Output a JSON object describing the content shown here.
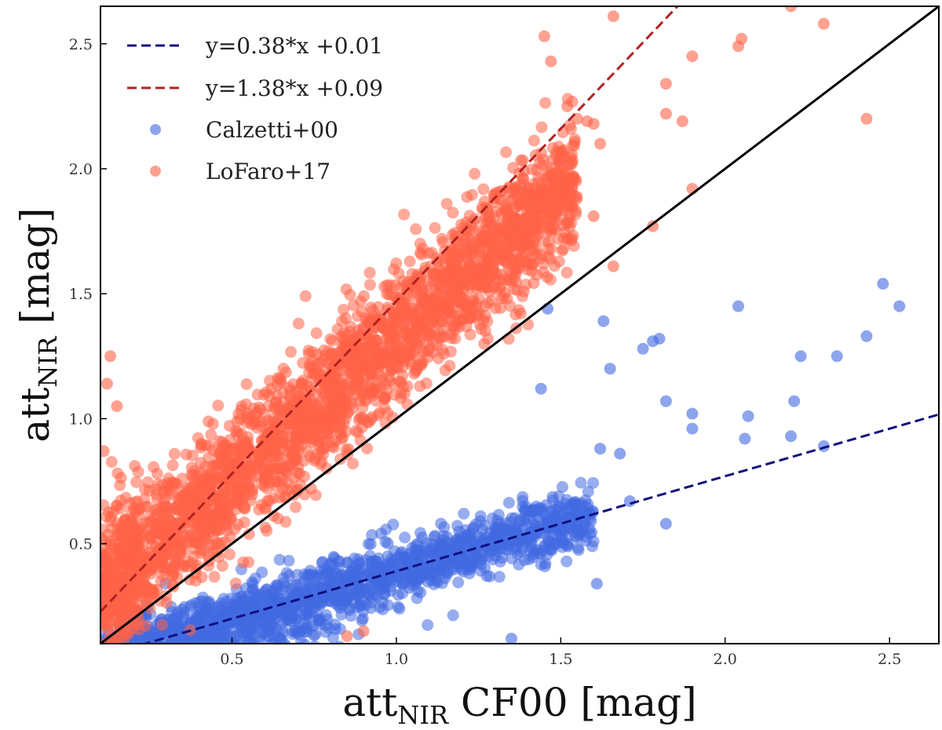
{
  "chart_data": {
    "type": "scatter",
    "title": "",
    "xlabel": {
      "main": "att",
      "sub": "NIR",
      "rest": " CF00 [mag]"
    },
    "ylabel": {
      "main": "att",
      "sub": "NIR",
      "rest": " [mag]"
    },
    "xlim": [
      0.1,
      2.65
    ],
    "ylim": [
      0.1,
      2.65
    ],
    "xticks": [
      0.5,
      1.0,
      1.5,
      2.0,
      2.5
    ],
    "yticks": [
      0.5,
      1.0,
      1.5,
      2.0,
      2.5
    ],
    "xtick_labels": [
      "0.5",
      "1.0",
      "1.5",
      "2.0",
      "2.5"
    ],
    "ytick_labels": [
      "0.5",
      "1.0",
      "1.5",
      "2.0",
      "2.5"
    ],
    "grid": false,
    "legend_position": "top-left",
    "lines": [
      {
        "name": "identity",
        "slope": 1.0,
        "intercept": 0.0,
        "color": "#000000",
        "style": "solid",
        "in_legend": false
      },
      {
        "name": "y=0.38*x +0.01",
        "slope": 0.38,
        "intercept": 0.01,
        "color": "#101080",
        "style": "dashed",
        "in_legend": true
      },
      {
        "name": "y=1.38*x +0.09",
        "slope": 1.38,
        "intercept": 0.09,
        "color": "#b22222",
        "style": "dashed",
        "in_legend": true
      }
    ],
    "series": [
      {
        "name": "Calzetti+00",
        "color": "#4169e1",
        "clouds": [
          {
            "x_range": [
              0.1,
              1.6
            ],
            "slope": 0.38,
            "intercept": 0.01,
            "spread": 0.06,
            "n": 1400
          },
          {
            "x_range": [
              0.15,
              0.9
            ],
            "slope": 0.35,
            "intercept": -0.02,
            "spread": 0.08,
            "n": 300
          }
        ],
        "outliers": [
          {
            "x": 1.63,
            "y": 1.39
          },
          {
            "x": 1.75,
            "y": 1.28
          },
          {
            "x": 1.78,
            "y": 1.31
          },
          {
            "x": 1.8,
            "y": 1.32
          },
          {
            "x": 1.65,
            "y": 1.2
          },
          {
            "x": 2.04,
            "y": 1.45
          },
          {
            "x": 2.48,
            "y": 1.54
          },
          {
            "x": 2.53,
            "y": 1.45
          },
          {
            "x": 2.43,
            "y": 1.33
          },
          {
            "x": 2.34,
            "y": 1.25
          },
          {
            "x": 2.23,
            "y": 1.25
          },
          {
            "x": 1.82,
            "y": 1.07
          },
          {
            "x": 1.9,
            "y": 1.02
          },
          {
            "x": 1.9,
            "y": 0.96
          },
          {
            "x": 2.07,
            "y": 1.01
          },
          {
            "x": 2.06,
            "y": 0.92
          },
          {
            "x": 2.2,
            "y": 0.93
          },
          {
            "x": 2.21,
            "y": 1.07
          },
          {
            "x": 2.3,
            "y": 0.89
          },
          {
            "x": 1.82,
            "y": 0.58
          },
          {
            "x": 1.61,
            "y": 0.34
          },
          {
            "x": 1.46,
            "y": 1.44
          },
          {
            "x": 1.44,
            "y": 1.12
          },
          {
            "x": 1.35,
            "y": 0.12
          },
          {
            "x": 1.68,
            "y": 0.86
          },
          {
            "x": 1.71,
            "y": 0.67
          },
          {
            "x": 1.62,
            "y": 0.88
          }
        ]
      },
      {
        "name": "LoFaro+17",
        "color": "#ff6347",
        "clouds": [
          {
            "x_range": [
              0.1,
              1.55
            ],
            "slope": 1.15,
            "intercept": 0.17,
            "spread": 0.13,
            "n": 2600
          },
          {
            "x_range": [
              0.1,
              0.22
            ],
            "slope": 1.3,
            "intercept": 0.12,
            "spread": 0.2,
            "n": 200
          }
        ],
        "outliers": [
          {
            "x": 1.45,
            "y": 2.53
          },
          {
            "x": 1.47,
            "y": 2.43
          },
          {
            "x": 1.52,
            "y": 2.25
          },
          {
            "x": 1.55,
            "y": 2.2
          },
          {
            "x": 1.58,
            "y": 2.19
          },
          {
            "x": 1.6,
            "y": 2.18
          },
          {
            "x": 1.62,
            "y": 2.1
          },
          {
            "x": 1.66,
            "y": 2.61
          },
          {
            "x": 1.82,
            "y": 2.34
          },
          {
            "x": 1.82,
            "y": 2.22
          },
          {
            "x": 1.87,
            "y": 2.19
          },
          {
            "x": 1.9,
            "y": 2.45
          },
          {
            "x": 2.05,
            "y": 2.52
          },
          {
            "x": 2.04,
            "y": 2.49
          },
          {
            "x": 2.2,
            "y": 2.65
          },
          {
            "x": 2.3,
            "y": 2.58
          },
          {
            "x": 2.43,
            "y": 2.2
          },
          {
            "x": 1.9,
            "y": 1.92
          },
          {
            "x": 1.78,
            "y": 1.77
          },
          {
            "x": 1.6,
            "y": 1.81
          },
          {
            "x": 1.66,
            "y": 1.61
          },
          {
            "x": 0.13,
            "y": 1.25
          },
          {
            "x": 0.12,
            "y": 1.14
          },
          {
            "x": 0.15,
            "y": 1.05
          },
          {
            "x": 0.11,
            "y": 0.87
          },
          {
            "x": 0.85,
            "y": 0.13
          },
          {
            "x": 0.9,
            "y": 0.15
          }
        ]
      }
    ]
  }
}
